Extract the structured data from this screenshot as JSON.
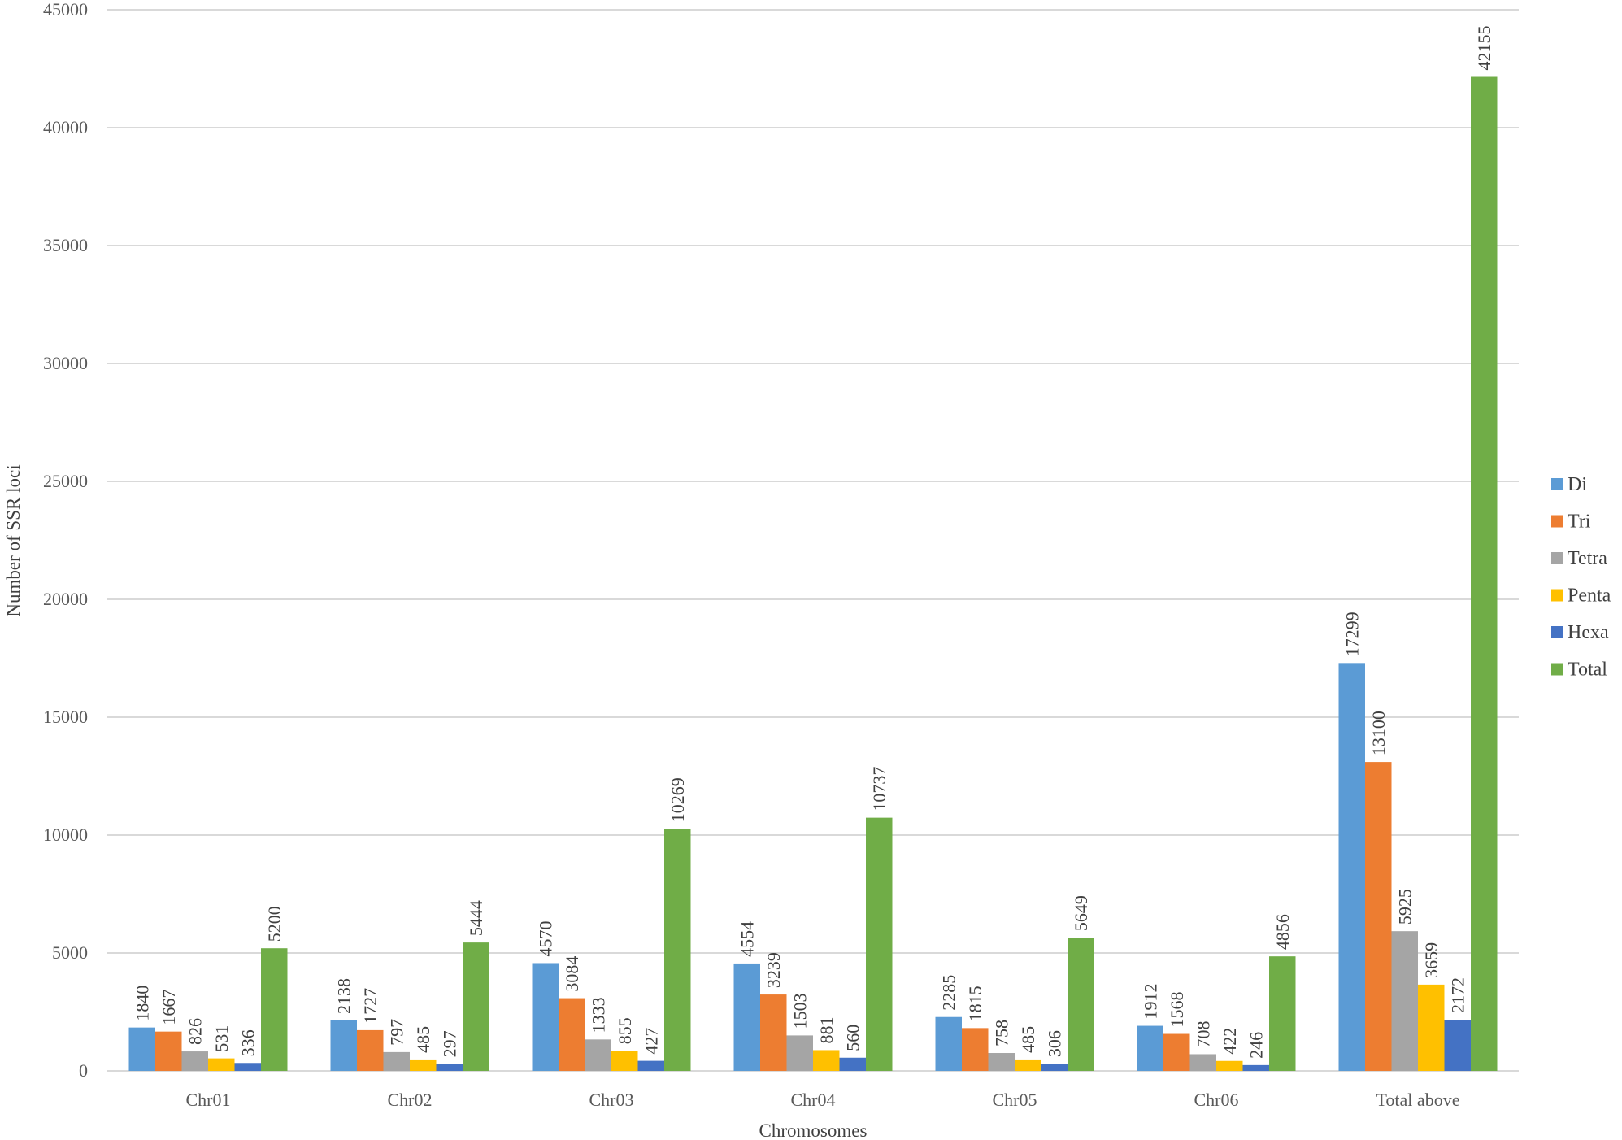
{
  "chart_data": {
    "type": "bar",
    "title": "",
    "xlabel": "Chromosomes",
    "ylabel": "Number of SSR loci",
    "ylim": [
      0,
      45000
    ],
    "yticks": [
      0,
      5000,
      10000,
      15000,
      20000,
      25000,
      30000,
      35000,
      40000,
      45000
    ],
    "grid": true,
    "legend_position": "right",
    "categories": [
      "Chr01",
      "Chr02",
      "Chr03",
      "Chr04",
      "Chr05",
      "Chr06",
      "Total above"
    ],
    "series": [
      {
        "name": "Di",
        "color": "#5B9BD5",
        "values": [
          1840,
          2138,
          4570,
          4554,
          2285,
          1912,
          17299
        ]
      },
      {
        "name": "Tri",
        "color": "#ED7D31",
        "values": [
          1667,
          1727,
          3084,
          3239,
          1815,
          1568,
          13100
        ]
      },
      {
        "name": "Tetra",
        "color": "#A5A5A5",
        "values": [
          826,
          797,
          1333,
          1503,
          758,
          708,
          5925
        ]
      },
      {
        "name": "Penta",
        "color": "#FFC000",
        "values": [
          531,
          485,
          855,
          881,
          485,
          422,
          3659
        ]
      },
      {
        "name": "Hexa",
        "color": "#4472C4",
        "values": [
          336,
          297,
          427,
          560,
          306,
          246,
          2172
        ]
      },
      {
        "name": "Total",
        "color": "#70AD47",
        "values": [
          5200,
          5444,
          10269,
          10737,
          5649,
          4856,
          42155
        ]
      }
    ],
    "data_labels": true,
    "data_label_rotation": -90
  }
}
